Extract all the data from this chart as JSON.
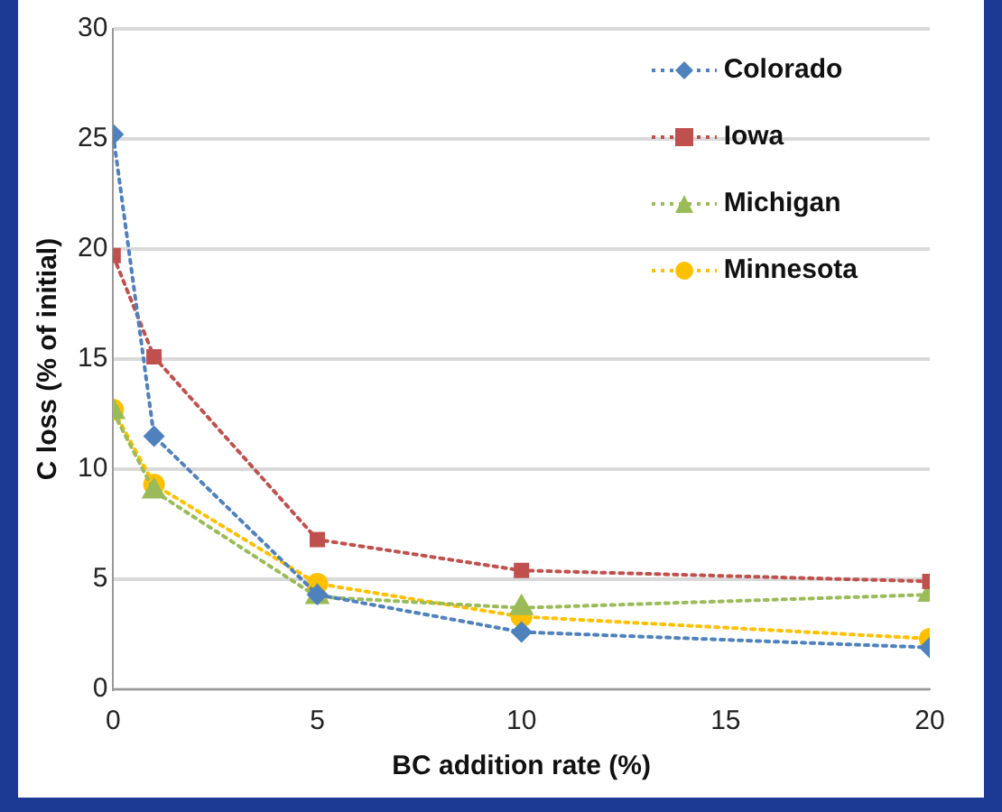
{
  "chart_data": {
    "type": "line",
    "xlabel": "BC addition rate (%)",
    "ylabel": "C loss (% of initial)",
    "x": [
      0,
      1,
      5,
      10,
      20
    ],
    "series": [
      {
        "name": "Colorado",
        "color": "#4f81bd",
        "marker": "diamond",
        "values": [
          25.2,
          11.5,
          4.3,
          2.6,
          1.9
        ]
      },
      {
        "name": "Iowa",
        "color": "#c0504d",
        "marker": "square",
        "values": [
          19.7,
          15.1,
          6.8,
          5.4,
          4.9
        ]
      },
      {
        "name": "Michigan",
        "color": "#9bbb59",
        "marker": "triangle",
        "values": [
          12.6,
          9.0,
          4.2,
          3.7,
          4.3
        ]
      },
      {
        "name": "Minnesota",
        "color": "#ffc000",
        "marker": "circle",
        "values": [
          12.7,
          9.3,
          4.8,
          3.3,
          2.3
        ]
      }
    ],
    "xlim": [
      0,
      20
    ],
    "xticks": [
      0,
      5,
      10,
      15,
      20
    ],
    "ylim": [
      0,
      30
    ],
    "yticks": [
      0,
      5,
      10,
      15,
      20,
      25,
      30
    ],
    "grid": "y",
    "legend": "top right",
    "line_style": "dotted"
  }
}
